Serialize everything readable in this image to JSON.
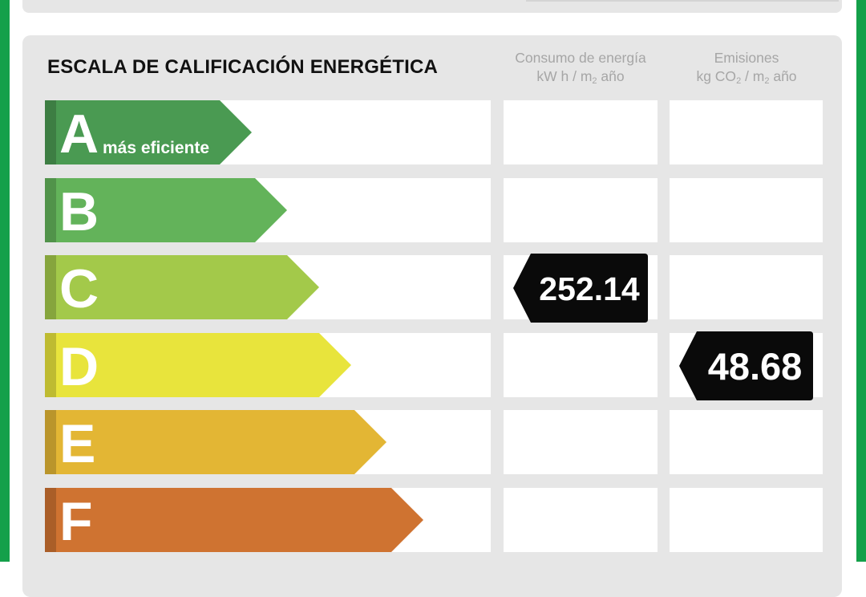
{
  "header": {
    "title": "ESCALA DE CALIFICACIÓN ENERGÉTICA",
    "energy_col": {
      "line1": "Consumo de energía",
      "line2_pre": "kW h / m",
      "line2_sub": "2",
      "line2_post": " año"
    },
    "emissions_col": {
      "line1": "Emisiones",
      "line2_pre": "kg CO",
      "line2_sub1": "2",
      "line2_mid": " / m",
      "line2_sub2": "2",
      "line2_post": " año"
    }
  },
  "chart_data": {
    "type": "table",
    "title": "ESCALA DE CALIFICACIÓN ENERGÉTICA",
    "top_note": "más eficiente",
    "categories": [
      "A",
      "B",
      "C",
      "D",
      "E",
      "F"
    ],
    "colors": [
      "#4a9a52",
      "#63b35a",
      "#a3c94a",
      "#e8e43c",
      "#e3b634",
      "#cf7331"
    ],
    "energy_consumption": {
      "label": "Consumo de energía kW h / m2 año",
      "value": "252.14",
      "rating": "C"
    },
    "emissions": {
      "label": "Emisiones kg CO2 / m2 año",
      "value": "48.68",
      "rating": "D"
    }
  }
}
